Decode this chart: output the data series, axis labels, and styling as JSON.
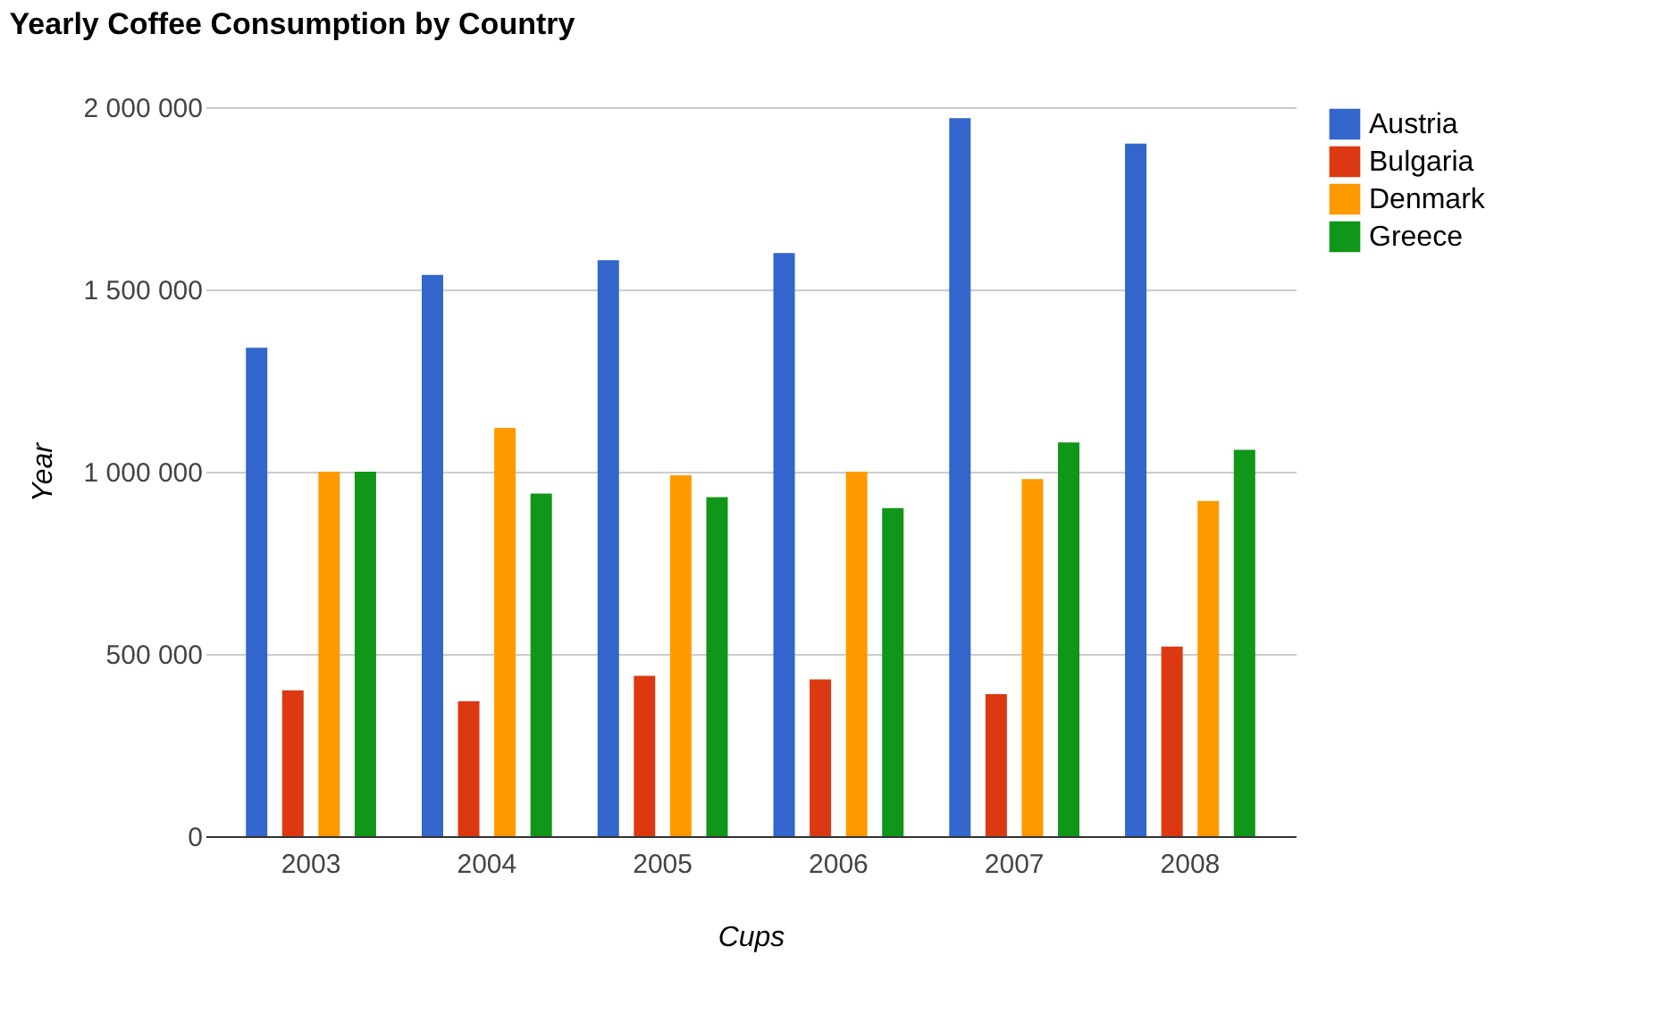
{
  "chart_data": {
    "type": "bar",
    "title": "Yearly Coffee Consumption by Country",
    "xlabel": "Cups",
    "ylabel": "Year",
    "categories": [
      "2003",
      "2004",
      "2005",
      "2006",
      "2007",
      "2008"
    ],
    "series": [
      {
        "name": "Austria",
        "color": "#3366cc",
        "values": [
          1340000,
          1540000,
          1580000,
          1600000,
          1970000,
          1900000
        ]
      },
      {
        "name": "Bulgaria",
        "color": "#dc3912",
        "values": [
          400000,
          370000,
          440000,
          430000,
          390000,
          520000
        ]
      },
      {
        "name": "Denmark",
        "color": "#ff9900",
        "values": [
          1000000,
          1120000,
          990000,
          1000000,
          980000,
          920000
        ]
      },
      {
        "name": "Greece",
        "color": "#109618",
        "values": [
          1000000,
          940000,
          930000,
          900000,
          1080000,
          1060000
        ]
      }
    ],
    "ylim": [
      0,
      2000000
    ],
    "yticks": [
      0,
      {
        "value": 500000,
        "label": "500 000"
      },
      {
        "value": 1000000,
        "label": "1 000 000"
      },
      {
        "value": 1500000,
        "label": "1 500 000"
      },
      {
        "value": 2000000,
        "label": "2 000 000"
      }
    ],
    "grid": "y",
    "legend": "right"
  }
}
